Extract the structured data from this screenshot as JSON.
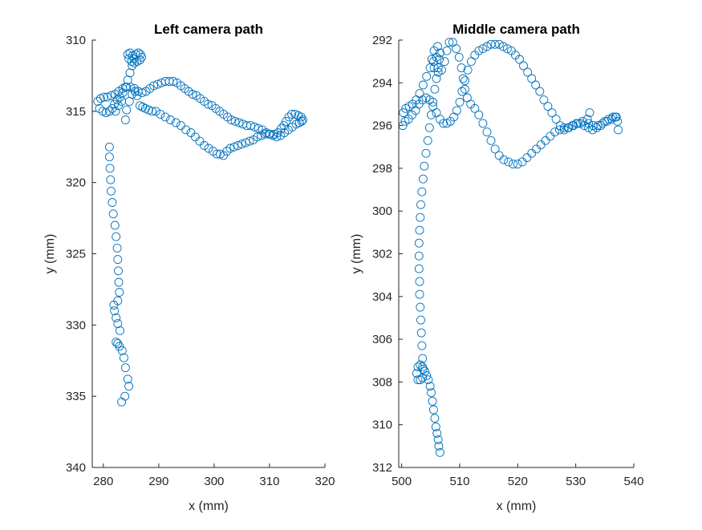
{
  "colors": {
    "marker": "#0072BD",
    "axis": "#262626",
    "background": "#ffffff"
  },
  "chart_data": [
    {
      "type": "scatter",
      "title": "Left camera path",
      "xlabel": "x (mm)",
      "ylabel": "y (mm)",
      "xlim": [
        278,
        320
      ],
      "ylim": [
        310,
        340
      ],
      "y_reversed": true,
      "xticks": [
        280,
        290,
        300,
        310,
        320
      ],
      "yticks": [
        310,
        315,
        320,
        325,
        330,
        335,
        340
      ],
      "grid": false,
      "marker": "open-circle",
      "path_points": [
        [
          283.3,
          335.4
        ],
        [
          283.9,
          335.0
        ],
        [
          284.6,
          334.3
        ],
        [
          284.4,
          333.8
        ],
        [
          284.0,
          333.0
        ],
        [
          283.7,
          332.3
        ],
        [
          283.4,
          331.8
        ],
        [
          282.9,
          331.5
        ],
        [
          282.6,
          331.3
        ],
        [
          282.3,
          331.2
        ],
        [
          283.0,
          330.4
        ],
        [
          282.6,
          329.9
        ],
        [
          282.3,
          329.5
        ],
        [
          282.0,
          329.0
        ],
        [
          281.9,
          328.6
        ],
        [
          282.6,
          328.3
        ],
        [
          282.9,
          327.7
        ],
        [
          282.8,
          327.0
        ],
        [
          282.7,
          326.2
        ],
        [
          282.6,
          325.4
        ],
        [
          282.5,
          324.6
        ],
        [
          282.3,
          323.8
        ],
        [
          282.1,
          323.0
        ],
        [
          281.8,
          322.2
        ],
        [
          281.6,
          321.4
        ],
        [
          281.4,
          320.6
        ],
        [
          281.3,
          319.8
        ],
        [
          281.2,
          319.0
        ],
        [
          281.1,
          318.2
        ],
        [
          281.1,
          317.5
        ],
        [
          282.2,
          315.0
        ],
        [
          282.7,
          314.6
        ],
        [
          283.3,
          314.3
        ],
        [
          284.0,
          315.6
        ],
        [
          284.2,
          314.9
        ],
        [
          284.7,
          314.3
        ],
        [
          285.2,
          313.8
        ],
        [
          285.7,
          313.6
        ],
        [
          286.1,
          313.9
        ],
        [
          286.6,
          314.6
        ],
        [
          287.1,
          314.7
        ],
        [
          287.6,
          314.8
        ],
        [
          288.2,
          314.9
        ],
        [
          288.8,
          315.0
        ],
        [
          289.5,
          315.0
        ],
        [
          290.3,
          315.2
        ],
        [
          291.2,
          315.4
        ],
        [
          292.1,
          315.6
        ],
        [
          293.1,
          315.8
        ],
        [
          294.0,
          316.0
        ],
        [
          294.9,
          316.3
        ],
        [
          295.8,
          316.5
        ],
        [
          296.6,
          316.8
        ],
        [
          297.4,
          317.1
        ],
        [
          298.2,
          317.4
        ],
        [
          299.0,
          317.6
        ],
        [
          299.8,
          317.8
        ],
        [
          300.5,
          318.0
        ],
        [
          301.1,
          318.0
        ],
        [
          301.7,
          318.1
        ],
        [
          302.3,
          317.8
        ],
        [
          302.9,
          317.6
        ],
        [
          303.6,
          317.5
        ],
        [
          304.3,
          317.4
        ],
        [
          305.0,
          317.3
        ],
        [
          305.7,
          317.2
        ],
        [
          306.4,
          317.1
        ],
        [
          307.1,
          317.0
        ],
        [
          307.8,
          316.8
        ],
        [
          308.5,
          316.7
        ],
        [
          309.2,
          316.6
        ],
        [
          309.9,
          316.6
        ],
        [
          310.6,
          316.7
        ],
        [
          311.3,
          316.8
        ],
        [
          312.0,
          316.7
        ],
        [
          312.7,
          316.5
        ],
        [
          313.4,
          316.3
        ],
        [
          314.1,
          316.1
        ],
        [
          314.8,
          315.9
        ],
        [
          315.4,
          315.8
        ],
        [
          315.8,
          315.7
        ],
        [
          316.0,
          315.6
        ],
        [
          315.7,
          315.4
        ],
        [
          315.2,
          315.3
        ],
        [
          314.6,
          315.2
        ],
        [
          314.0,
          315.2
        ],
        [
          313.5,
          315.4
        ],
        [
          313.0,
          315.7
        ],
        [
          312.6,
          316.0
        ],
        [
          312.1,
          316.2
        ],
        [
          311.5,
          316.5
        ],
        [
          310.8,
          316.6
        ],
        [
          310.1,
          316.6
        ],
        [
          309.4,
          316.5
        ],
        [
          308.7,
          316.3
        ],
        [
          308.0,
          316.2
        ],
        [
          307.3,
          316.1
        ],
        [
          306.6,
          316.0
        ],
        [
          305.9,
          316.0
        ],
        [
          305.2,
          315.9
        ],
        [
          304.5,
          315.8
        ],
        [
          303.8,
          315.7
        ],
        [
          303.1,
          315.6
        ],
        [
          302.4,
          315.4
        ],
        [
          301.7,
          315.2
        ],
        [
          301.0,
          315.0
        ],
        [
          300.3,
          314.8
        ],
        [
          299.6,
          314.6
        ],
        [
          298.9,
          314.5
        ],
        [
          298.2,
          314.3
        ],
        [
          297.5,
          314.1
        ],
        [
          296.8,
          313.9
        ],
        [
          296.1,
          313.8
        ],
        [
          295.4,
          313.6
        ],
        [
          294.7,
          313.4
        ],
        [
          294.0,
          313.2
        ],
        [
          293.3,
          313.0
        ],
        [
          292.6,
          312.9
        ],
        [
          291.9,
          312.9
        ],
        [
          291.2,
          312.9
        ],
        [
          290.5,
          313.0
        ],
        [
          289.8,
          313.1
        ],
        [
          289.1,
          313.2
        ],
        [
          288.4,
          313.4
        ],
        [
          287.7,
          313.6
        ],
        [
          287.0,
          313.7
        ],
        [
          286.3,
          313.6
        ],
        [
          285.6,
          313.4
        ],
        [
          284.9,
          313.3
        ],
        [
          284.2,
          313.3
        ],
        [
          283.5,
          313.4
        ],
        [
          282.8,
          313.6
        ],
        [
          282.1,
          313.8
        ],
        [
          281.4,
          313.9
        ],
        [
          280.7,
          314.0
        ],
        [
          280.1,
          314.0
        ],
        [
          279.5,
          314.1
        ],
        [
          279.0,
          314.3
        ],
        [
          279.3,
          314.8
        ],
        [
          279.9,
          315.0
        ],
        [
          280.5,
          315.1
        ],
        [
          281.1,
          315.0
        ],
        [
          281.6,
          314.8
        ],
        [
          282.0,
          314.5
        ],
        [
          282.5,
          314.2
        ],
        [
          283.0,
          314.0
        ],
        [
          283.5,
          313.7
        ],
        [
          284.0,
          313.3
        ],
        [
          284.4,
          312.8
        ],
        [
          284.8,
          312.3
        ],
        [
          285.2,
          311.8
        ],
        [
          285.5,
          311.3
        ],
        [
          285.9,
          311.0
        ],
        [
          286.3,
          310.9
        ],
        [
          286.7,
          311.0
        ],
        [
          286.9,
          311.2
        ],
        [
          286.6,
          311.4
        ],
        [
          286.1,
          311.5
        ],
        [
          285.6,
          311.6
        ],
        [
          285.1,
          311.5
        ],
        [
          284.6,
          311.3
        ],
        [
          284.4,
          311.0
        ],
        [
          284.8,
          310.9
        ],
        [
          285.3,
          311.1
        ]
      ]
    },
    {
      "type": "scatter",
      "title": "Middle camera path",
      "xlabel": "x (mm)",
      "ylabel": "y (mm)",
      "xlim": [
        499.5,
        540
      ],
      "ylim": [
        292,
        312
      ],
      "y_reversed": true,
      "xticks": [
        500,
        510,
        520,
        530,
        540
      ],
      "yticks": [
        292,
        294,
        296,
        298,
        300,
        302,
        304,
        306,
        308,
        310,
        312
      ],
      "grid": false,
      "marker": "open-circle",
      "path_points": [
        [
          506.6,
          311.3
        ],
        [
          506.4,
          311.0
        ],
        [
          506.3,
          310.7
        ],
        [
          506.1,
          310.4
        ],
        [
          505.9,
          310.1
        ],
        [
          505.7,
          309.7
        ],
        [
          505.5,
          309.3
        ],
        [
          505.3,
          308.9
        ],
        [
          505.1,
          308.5
        ],
        [
          504.9,
          308.2
        ],
        [
          504.6,
          307.9
        ],
        [
          504.3,
          307.7
        ],
        [
          504.0,
          307.5
        ],
        [
          503.6,
          307.3
        ],
        [
          503.2,
          307.2
        ],
        [
          502.8,
          307.3
        ],
        [
          502.6,
          307.6
        ],
        [
          502.8,
          307.9
        ],
        [
          503.2,
          307.9
        ],
        [
          503.6,
          307.8
        ],
        [
          503.7,
          307.4
        ],
        [
          503.6,
          306.9
        ],
        [
          503.5,
          306.3
        ],
        [
          503.4,
          305.7
        ],
        [
          503.3,
          305.1
        ],
        [
          503.2,
          304.5
        ],
        [
          503.1,
          303.9
        ],
        [
          503.1,
          303.3
        ],
        [
          503.0,
          302.7
        ],
        [
          503.0,
          302.1
        ],
        [
          503.0,
          301.5
        ],
        [
          503.1,
          300.9
        ],
        [
          503.2,
          300.3
        ],
        [
          503.3,
          299.7
        ],
        [
          503.5,
          299.1
        ],
        [
          503.7,
          298.5
        ],
        [
          503.9,
          297.9
        ],
        [
          504.2,
          297.3
        ],
        [
          504.5,
          296.7
        ],
        [
          504.8,
          296.1
        ],
        [
          505.1,
          295.5
        ],
        [
          505.4,
          294.9
        ],
        [
          505.7,
          294.3
        ],
        [
          506.0,
          293.8
        ],
        [
          506.3,
          293.3
        ],
        [
          506.5,
          292.9
        ],
        [
          506.6,
          292.6
        ],
        [
          506.2,
          292.3
        ],
        [
          505.6,
          292.5
        ],
        [
          505.2,
          292.9
        ],
        [
          505.6,
          293.3
        ],
        [
          506.3,
          293.5
        ],
        [
          506.9,
          293.4
        ],
        [
          507.4,
          293.0
        ],
        [
          507.8,
          292.5
        ],
        [
          508.2,
          292.1
        ],
        [
          508.8,
          292.1
        ],
        [
          509.4,
          292.4
        ],
        [
          509.9,
          292.8
        ],
        [
          510.3,
          293.3
        ],
        [
          510.6,
          293.8
        ],
        [
          510.9,
          294.3
        ],
        [
          511.3,
          294.7
        ],
        [
          511.9,
          295.0
        ],
        [
          512.6,
          295.2
        ],
        [
          513.3,
          295.5
        ],
        [
          514.0,
          295.9
        ],
        [
          514.7,
          296.3
        ],
        [
          515.4,
          296.7
        ],
        [
          516.1,
          297.1
        ],
        [
          516.8,
          297.4
        ],
        [
          517.6,
          297.6
        ],
        [
          518.4,
          297.7
        ],
        [
          519.2,
          297.8
        ],
        [
          520.0,
          297.8
        ],
        [
          520.8,
          297.7
        ],
        [
          521.6,
          297.5
        ],
        [
          522.4,
          297.3
        ],
        [
          523.2,
          297.1
        ],
        [
          524.0,
          296.9
        ],
        [
          524.8,
          296.7
        ],
        [
          525.6,
          296.5
        ],
        [
          526.4,
          296.3
        ],
        [
          527.2,
          296.2
        ],
        [
          528.0,
          296.2
        ],
        [
          528.8,
          296.1
        ],
        [
          529.6,
          296.0
        ],
        [
          530.4,
          295.9
        ],
        [
          531.2,
          295.8
        ],
        [
          532.0,
          295.7
        ],
        [
          532.4,
          295.4
        ],
        [
          532.2,
          295.9
        ],
        [
          533.0,
          296.0
        ],
        [
          533.8,
          296.0
        ],
        [
          534.6,
          295.9
        ],
        [
          535.4,
          295.8
        ],
        [
          536.2,
          295.7
        ],
        [
          536.8,
          295.6
        ],
        [
          537.2,
          295.8
        ],
        [
          537.3,
          296.2
        ],
        [
          537.0,
          295.6
        ],
        [
          536.4,
          295.6
        ],
        [
          535.7,
          295.7
        ],
        [
          535.0,
          295.8
        ],
        [
          534.3,
          296.0
        ],
        [
          533.6,
          296.1
        ],
        [
          532.9,
          296.2
        ],
        [
          532.2,
          296.1
        ],
        [
          531.5,
          296.0
        ],
        [
          530.8,
          295.9
        ],
        [
          530.1,
          295.9
        ],
        [
          529.4,
          296.0
        ],
        [
          528.7,
          296.1
        ],
        [
          528.0,
          296.1
        ],
        [
          527.3,
          296.0
        ],
        [
          526.6,
          295.7
        ],
        [
          525.9,
          295.4
        ],
        [
          525.2,
          295.1
        ],
        [
          524.5,
          294.8
        ],
        [
          523.8,
          294.4
        ],
        [
          523.1,
          294.1
        ],
        [
          522.4,
          293.8
        ],
        [
          521.7,
          293.5
        ],
        [
          521.0,
          293.2
        ],
        [
          520.3,
          292.9
        ],
        [
          519.6,
          292.7
        ],
        [
          518.9,
          292.5
        ],
        [
          518.2,
          292.4
        ],
        [
          517.5,
          292.3
        ],
        [
          516.8,
          292.2
        ],
        [
          516.1,
          292.2
        ],
        [
          515.4,
          292.2
        ],
        [
          514.7,
          292.3
        ],
        [
          514.0,
          292.4
        ],
        [
          513.3,
          292.5
        ],
        [
          512.6,
          292.7
        ],
        [
          512.0,
          293.0
        ],
        [
          511.4,
          293.4
        ],
        [
          510.9,
          293.9
        ],
        [
          510.4,
          294.4
        ],
        [
          510.0,
          294.9
        ],
        [
          509.5,
          295.3
        ],
        [
          509.0,
          295.6
        ],
        [
          508.4,
          295.8
        ],
        [
          507.8,
          295.9
        ],
        [
          507.2,
          295.9
        ],
        [
          506.6,
          295.7
        ],
        [
          506.0,
          295.4
        ],
        [
          505.4,
          295.1
        ],
        [
          504.8,
          294.8
        ],
        [
          504.2,
          294.7
        ],
        [
          503.6,
          294.8
        ],
        [
          503.0,
          295.0
        ],
        [
          502.4,
          295.3
        ],
        [
          501.8,
          295.5
        ],
        [
          501.2,
          295.7
        ],
        [
          500.6,
          295.8
        ],
        [
          500.2,
          296.0
        ],
        [
          500.3,
          295.4
        ],
        [
          500.7,
          295.2
        ],
        [
          501.3,
          295.1
        ],
        [
          501.9,
          295.0
        ],
        [
          502.5,
          294.8
        ],
        [
          503.1,
          294.5
        ],
        [
          503.7,
          294.1
        ],
        [
          504.3,
          293.7
        ],
        [
          504.9,
          293.3
        ],
        [
          505.5,
          293.0
        ],
        [
          506.0,
          292.8
        ]
      ]
    }
  ]
}
